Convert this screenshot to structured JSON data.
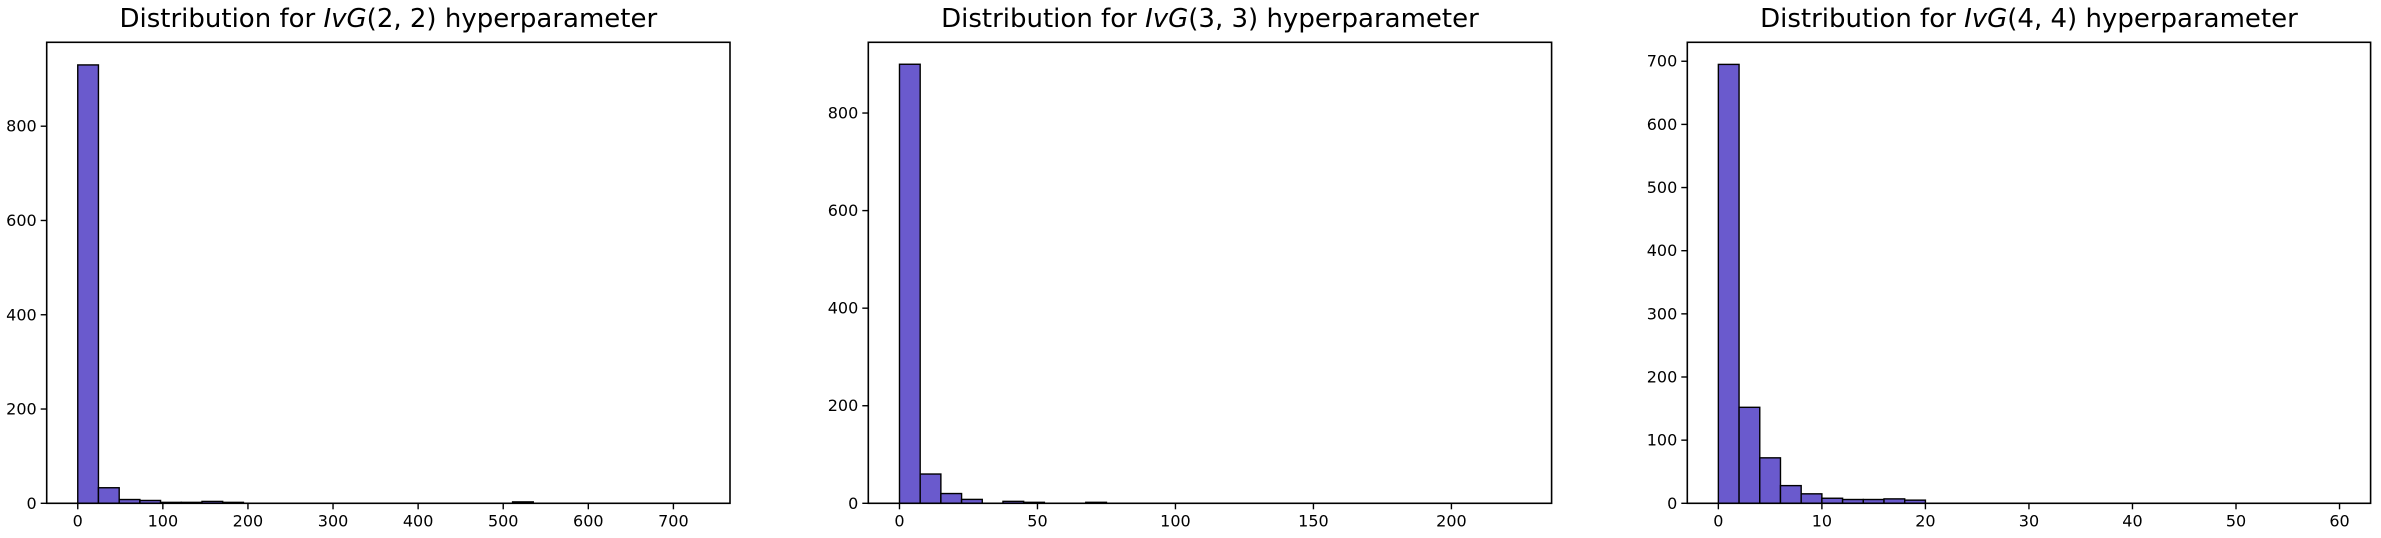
{
  "figure": {
    "background": "#ffffff",
    "bar_fill": "#6A5ACD",
    "bar_edge": "#000000",
    "axis_color": "#000000",
    "text_color": "#000000"
  },
  "chart_data": [
    {
      "type": "bar",
      "title": "Distribution for IvG(2, 2) hyperparameter",
      "title_parts": {
        "prefix": "Distribution for ",
        "math": "IvG",
        "args": "(2, 2)",
        "suffix": " hyperparameter"
      },
      "xlabel": "",
      "ylabel": "",
      "xlim": [
        -36.5,
        766.5
      ],
      "ylim": [
        0,
        978
      ],
      "xticks": [
        0,
        100,
        200,
        300,
        400,
        500,
        600,
        700
      ],
      "yticks": [
        0,
        200,
        400,
        600,
        800
      ],
      "grid": false,
      "legend": null,
      "bin_width": 24.33,
      "data_max": 730,
      "bars": [
        {
          "x0": 0.0,
          "x1": 24.3,
          "count": 930
        },
        {
          "x0": 24.3,
          "x1": 48.7,
          "count": 33
        },
        {
          "x0": 48.7,
          "x1": 73.0,
          "count": 8
        },
        {
          "x0": 73.0,
          "x1": 97.3,
          "count": 6
        },
        {
          "x0": 97.3,
          "x1": 121.7,
          "count": 2
        },
        {
          "x0": 121.7,
          "x1": 146.0,
          "count": 2
        },
        {
          "x0": 146.0,
          "x1": 170.3,
          "count": 4
        },
        {
          "x0": 170.3,
          "x1": 194.7,
          "count": 2
        },
        {
          "x0": 511.0,
          "x1": 535.3,
          "count": 3
        }
      ]
    },
    {
      "type": "bar",
      "title": "Distribution for IvG(3, 3) hyperparameter",
      "title_parts": {
        "prefix": "Distribution for ",
        "math": "IvG",
        "args": "(3, 3)",
        "suffix": " hyperparameter"
      },
      "xlabel": "",
      "ylabel": "",
      "xlim": [
        -11.3,
        236.3
      ],
      "ylim": [
        0,
        945
      ],
      "xticks": [
        0,
        50,
        100,
        150,
        200
      ],
      "yticks": [
        0,
        200,
        400,
        600,
        800
      ],
      "grid": false,
      "legend": null,
      "bin_width": 7.5,
      "data_max": 225,
      "bars": [
        {
          "x0": 0.0,
          "x1": 7.5,
          "count": 900
        },
        {
          "x0": 7.5,
          "x1": 15.0,
          "count": 60
        },
        {
          "x0": 15.0,
          "x1": 22.5,
          "count": 20
        },
        {
          "x0": 22.5,
          "x1": 30.0,
          "count": 8
        },
        {
          "x0": 37.5,
          "x1": 45.0,
          "count": 4
        },
        {
          "x0": 45.0,
          "x1": 52.5,
          "count": 2
        },
        {
          "x0": 67.5,
          "x1": 75.0,
          "count": 2
        }
      ]
    },
    {
      "type": "bar",
      "title": "Distribution for IvG(4, 4) hyperparameter",
      "title_parts": {
        "prefix": "Distribution for ",
        "math": "IvG",
        "args": "(4, 4)",
        "suffix": " hyperparameter"
      },
      "xlabel": "",
      "ylabel": "",
      "xlim": [
        -3,
        63
      ],
      "ylim": [
        0,
        730
      ],
      "xticks": [
        0,
        10,
        20,
        30,
        40,
        50,
        60
      ],
      "yticks": [
        0,
        100,
        200,
        300,
        400,
        500,
        600,
        700
      ],
      "grid": false,
      "legend": null,
      "bin_width": 2,
      "data_max": 60,
      "bars": [
        {
          "x0": 0,
          "x1": 2,
          "count": 695
        },
        {
          "x0": 2,
          "x1": 4,
          "count": 152
        },
        {
          "x0": 4,
          "x1": 6,
          "count": 72
        },
        {
          "x0": 6,
          "x1": 8,
          "count": 28
        },
        {
          "x0": 8,
          "x1": 10,
          "count": 15
        },
        {
          "x0": 10,
          "x1": 12,
          "count": 8
        },
        {
          "x0": 12,
          "x1": 14,
          "count": 6
        },
        {
          "x0": 14,
          "x1": 16,
          "count": 6
        },
        {
          "x0": 16,
          "x1": 18,
          "count": 7
        },
        {
          "x0": 18,
          "x1": 20,
          "count": 5
        }
      ]
    }
  ]
}
